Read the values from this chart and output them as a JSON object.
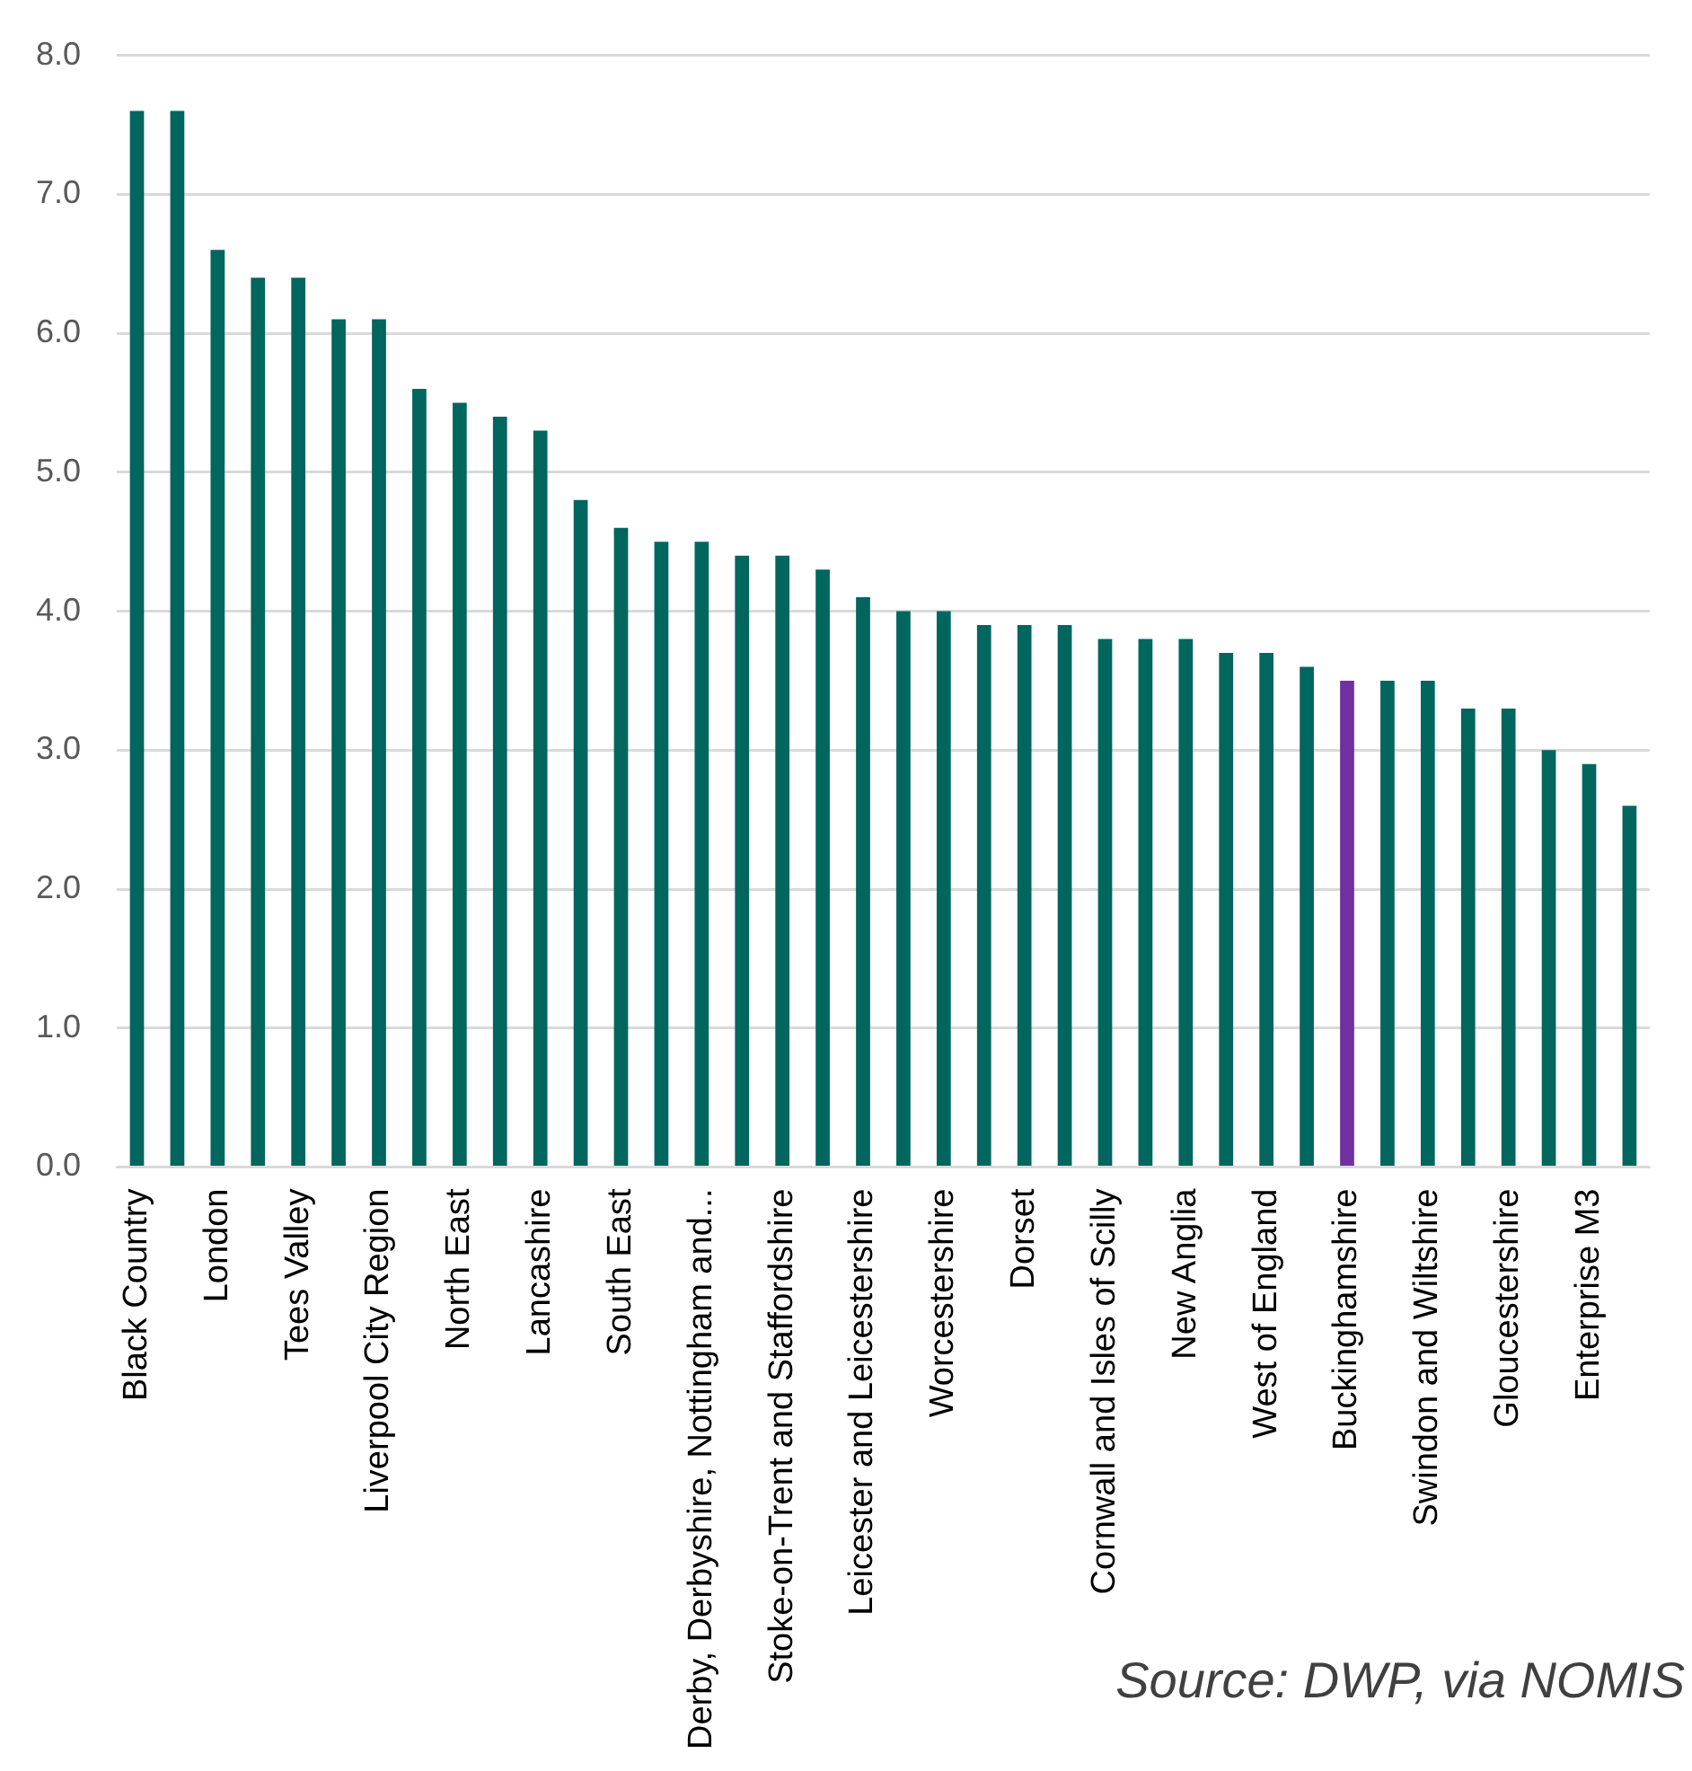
{
  "chart_data": {
    "type": "bar",
    "categories": [
      "Black Country",
      null,
      "London",
      null,
      "Tees Valley",
      null,
      "Liverpool City Region",
      null,
      "North East",
      null,
      "Lancashire",
      null,
      "South East",
      null,
      "Derby, Derbyshire, Nottingham and...",
      null,
      "Stoke-on-Trent and Staffordshire",
      null,
      "Leicester and Leicestershire",
      null,
      "Worcestershire",
      null,
      "Dorset",
      null,
      "Cornwall and Isles of Scilly",
      null,
      "New Anglia",
      null,
      "West of England",
      null,
      "Buckinghamshire",
      null,
      "Swindon and Wiltshire",
      null,
      "Gloucestershire",
      null,
      "Enterprise M3",
      null
    ],
    "values": [
      7.6,
      7.6,
      6.6,
      6.4,
      6.4,
      6.1,
      6.1,
      5.6,
      5.5,
      5.4,
      5.3,
      4.8,
      4.6,
      4.5,
      4.5,
      4.4,
      4.4,
      4.3,
      4.1,
      4.0,
      4.0,
      3.9,
      3.9,
      3.9,
      3.8,
      3.8,
      3.8,
      3.7,
      3.7,
      3.6,
      3.5,
      3.5,
      3.5,
      3.3,
      3.3,
      3.0,
      2.9,
      2.6
    ],
    "colors": [
      "#00665e",
      "#00665e",
      "#00665e",
      "#00665e",
      "#00665e",
      "#00665e",
      "#00665e",
      "#00665e",
      "#00665e",
      "#00665e",
      "#00665e",
      "#00665e",
      "#00665e",
      "#00665e",
      "#00665e",
      "#00665e",
      "#00665e",
      "#00665e",
      "#00665e",
      "#00665e",
      "#00665e",
      "#00665e",
      "#00665e",
      "#00665e",
      "#00665e",
      "#00665e",
      "#00665e",
      "#00665e",
      "#00665e",
      "#00665e",
      "#7030a0",
      "#00665e",
      "#00665e",
      "#00665e",
      "#00665e",
      "#00665e",
      "#00665e",
      "#00665e"
    ],
    "ylim": [
      0,
      8
    ],
    "yticks": [
      {
        "value": 0,
        "label": "0.0"
      },
      {
        "value": 1,
        "label": "1.0"
      },
      {
        "value": 2,
        "label": "2.0"
      },
      {
        "value": 3,
        "label": "3.0"
      },
      {
        "value": 4,
        "label": "4.0"
      },
      {
        "value": 5,
        "label": "5.0"
      },
      {
        "value": 6,
        "label": "6.0"
      },
      {
        "value": 7,
        "label": "7.0"
      },
      {
        "value": 8,
        "label": "8.0"
      }
    ],
    "grid": "y",
    "legend": false,
    "annotations": [
      "Source: DWP, via NOMIS"
    ]
  }
}
